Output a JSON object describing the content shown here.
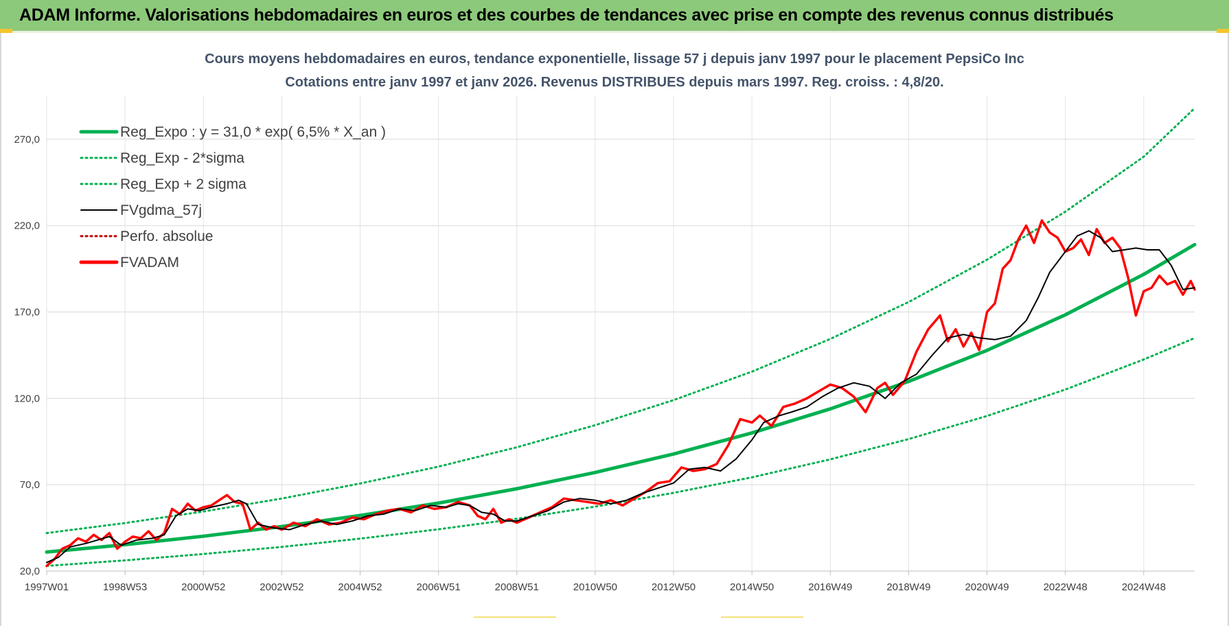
{
  "header": {
    "banner_title": "ADAM Informe. Valorisations hebdomadaires en euros et des courbes de tendances avec prise en compte des revenus connus distribués"
  },
  "colors": {
    "banner": "#8dc97a",
    "regression": "#00b050",
    "smooth": "#000000",
    "fvadam": "#ff0000",
    "perf": "#c00000"
  },
  "chart_data": {
    "type": "line",
    "title": "Cours moyens hebdomadaires en euros, tendance exponentielle, lissage 57 j depuis janv 1997 pour le placement PepsiCo Inc",
    "subtitle": "Cotations entre janv 1997 et janv 2026. Revenus DISTRIBUES depuis mars 1997.  Reg. croiss. : 4,8/20.",
    "xlabel": "",
    "ylabel": "",
    "ylim": [
      20,
      295
    ],
    "yticks": [
      20,
      70,
      120,
      170,
      220,
      270
    ],
    "ytick_labels": [
      "20,0",
      "70,0",
      "120,0",
      "170,0",
      "220,0",
      "270,0"
    ],
    "xlim": [
      1997.0,
      2026.3
    ],
    "xticks": [
      1997.0,
      1999.0,
      2001.0,
      2003.0,
      2005.0,
      2007.0,
      2009.0,
      2011.0,
      2013.0,
      2015.0,
      2017.0,
      2019.0,
      2021.0,
      2023.0,
      2025.0
    ],
    "xtick_labels": [
      "1997W01",
      "1998W53",
      "2000W52",
      "2002W52",
      "2004W52",
      "2006W51",
      "2008W51",
      "2010W50",
      "2012W50",
      "2014W50",
      "2016W49",
      "2018W49",
      "2020W49",
      "2022W48",
      "2024W48"
    ],
    "grid": true,
    "legend_position": "top-left",
    "legend": [
      {
        "label": "Reg_Expo : y = 31,0 * exp( 6,5% *  X_an )",
        "color": "#00b050",
        "style": "solid-thick"
      },
      {
        "label": "Reg_Exp - 2*sigma",
        "color": "#00b050",
        "style": "dotted"
      },
      {
        "label": "Reg_Exp + 2 sigma",
        "color": "#00b050",
        "style": "dotted"
      },
      {
        "label": "FVgdma_57j",
        "color": "#000000",
        "style": "solid"
      },
      {
        "label": "Perfo. absolue",
        "color": "#c00000",
        "style": "dotted"
      },
      {
        "label": "FVADAM",
        "color": "#ff0000",
        "style": "solid-thick"
      }
    ],
    "series": [
      {
        "name": "Reg_Expo : y = 31,0 * exp( 6,5% *  X_an )",
        "x": [
          1997.0,
          1999.0,
          2001.0,
          2003.0,
          2005.0,
          2007.0,
          2009.0,
          2011.0,
          2013.0,
          2015.0,
          2017.0,
          2019.0,
          2021.0,
          2023.0,
          2025.0,
          2026.3
        ],
        "values": [
          31.0,
          35.3,
          40.2,
          45.8,
          52.2,
          59.4,
          67.7,
          77.1,
          87.8,
          100.0,
          113.9,
          129.8,
          147.8,
          168.4,
          191.8,
          209.0
        ]
      },
      {
        "name": "Reg_Exp - 2*sigma",
        "x": [
          1997.0,
          1999.0,
          2001.0,
          2003.0,
          2005.0,
          2007.0,
          2009.0,
          2011.0,
          2013.0,
          2015.0,
          2017.0,
          2019.0,
          2021.0,
          2023.0,
          2025.0,
          2026.3
        ],
        "values": [
          23.0,
          26.2,
          29.9,
          34.0,
          38.8,
          44.2,
          50.3,
          57.3,
          65.3,
          74.3,
          84.7,
          96.4,
          109.8,
          125.1,
          142.5,
          154.9
        ]
      },
      {
        "name": "Reg_Exp + 2 sigma",
        "x": [
          1997.0,
          1999.0,
          2001.0,
          2003.0,
          2005.0,
          2007.0,
          2009.0,
          2011.0,
          2013.0,
          2015.0,
          2017.0,
          2019.0,
          2021.0,
          2023.0,
          2025.0,
          2026.3
        ],
        "values": [
          42.0,
          47.8,
          54.5,
          62.0,
          70.7,
          80.5,
          91.7,
          104.5,
          119.0,
          135.5,
          154.4,
          175.8,
          200.3,
          228.1,
          259.9,
          288.0
        ]
      },
      {
        "name": "FVgdma_57j",
        "x": [
          1997.0,
          1997.3,
          1997.6,
          1998.0,
          1998.3,
          1998.6,
          1998.9,
          1999.3,
          1999.7,
          2000.0,
          2000.3,
          2000.6,
          2000.9,
          2001.2,
          2001.6,
          2001.9,
          2002.1,
          2002.4,
          2002.8,
          2003.2,
          2003.6,
          2004.0,
          2004.4,
          2004.8,
          2005.2,
          2005.6,
          2006.0,
          2006.4,
          2006.8,
          2007.2,
          2007.5,
          2007.8,
          2008.1,
          2008.4,
          2008.7,
          2009.0,
          2009.4,
          2009.8,
          2010.2,
          2010.6,
          2011.0,
          2011.4,
          2011.8,
          2012.2,
          2012.6,
          2013.0,
          2013.4,
          2013.8,
          2014.2,
          2014.6,
          2015.0,
          2015.3,
          2015.7,
          2016.0,
          2016.4,
          2016.8,
          2017.2,
          2017.6,
          2018.0,
          2018.4,
          2018.8,
          2019.2,
          2019.6,
          2020.0,
          2020.4,
          2020.8,
          2021.2,
          2021.6,
          2022.0,
          2022.3,
          2022.6,
          2023.0,
          2023.3,
          2023.6,
          2023.9,
          2024.2,
          2024.5,
          2024.8,
          2025.1,
          2025.4,
          2025.7,
          2026.0,
          2026.3
        ],
        "values": [
          25,
          28,
          34,
          36,
          38,
          40,
          35,
          38,
          39,
          41,
          52,
          56,
          55,
          57,
          59,
          61,
          59,
          47,
          45,
          44,
          47,
          49,
          47,
          49,
          52,
          53,
          56,
          55,
          58,
          57,
          59,
          58,
          54,
          53,
          49,
          49,
          52,
          55,
          60,
          62,
          61,
          59,
          61,
          65,
          68,
          71,
          79,
          80,
          78,
          85,
          96,
          106,
          110,
          112,
          115,
          121,
          126,
          129,
          127,
          120,
          129,
          134,
          145,
          155,
          157,
          155,
          154,
          156,
          165,
          178,
          193,
          205,
          214,
          217,
          213,
          205,
          206,
          207,
          206,
          206,
          197,
          183,
          184
        ]
      },
      {
        "name": "FVADAM",
        "x": [
          1997.0,
          1997.2,
          1997.4,
          1997.6,
          1997.8,
          1998.0,
          1998.2,
          1998.4,
          1998.6,
          1998.8,
          1999.0,
          1999.2,
          1999.4,
          1999.6,
          1999.8,
          2000.0,
          2000.2,
          2000.4,
          2000.6,
          2000.8,
          2001.0,
          2001.2,
          2001.4,
          2001.6,
          2001.8,
          2002.0,
          2002.2,
          2002.4,
          2002.6,
          2002.8,
          2003.0,
          2003.3,
          2003.6,
          2003.9,
          2004.2,
          2004.5,
          2004.8,
          2005.1,
          2005.4,
          2005.7,
          2006.0,
          2006.3,
          2006.6,
          2006.9,
          2007.2,
          2007.5,
          2007.8,
          2008.0,
          2008.2,
          2008.4,
          2008.6,
          2008.8,
          2009.0,
          2009.3,
          2009.6,
          2009.9,
          2010.2,
          2010.5,
          2010.8,
          2011.1,
          2011.4,
          2011.7,
          2012.0,
          2012.3,
          2012.6,
          2012.9,
          2013.2,
          2013.5,
          2013.8,
          2014.1,
          2014.4,
          2014.7,
          2015.0,
          2015.2,
          2015.5,
          2015.8,
          2016.1,
          2016.4,
          2016.7,
          2017.0,
          2017.3,
          2017.6,
          2017.9,
          2018.2,
          2018.4,
          2018.6,
          2018.9,
          2019.2,
          2019.5,
          2019.8,
          2020.0,
          2020.2,
          2020.4,
          2020.6,
          2020.8,
          2021.0,
          2021.2,
          2021.4,
          2021.6,
          2021.8,
          2022.0,
          2022.2,
          2022.4,
          2022.6,
          2022.8,
          2023.0,
          2023.2,
          2023.4,
          2023.6,
          2023.8,
          2024.0,
          2024.2,
          2024.4,
          2024.6,
          2024.8,
          2025.0,
          2025.2,
          2025.4,
          2025.6,
          2025.8,
          2026.0,
          2026.2,
          2026.3
        ],
        "values": [
          23,
          27,
          33,
          35,
          39,
          37,
          41,
          38,
          42,
          33,
          37,
          40,
          39,
          43,
          38,
          42,
          56,
          53,
          59,
          55,
          57,
          58,
          61,
          64,
          60,
          59,
          44,
          48,
          44,
          46,
          44,
          48,
          46,
          50,
          47,
          48,
          51,
          50,
          53,
          55,
          56,
          54,
          58,
          56,
          57,
          60,
          58,
          52,
          50,
          56,
          48,
          50,
          48,
          51,
          54,
          57,
          62,
          61,
          60,
          59,
          61,
          58,
          62,
          66,
          71,
          72,
          80,
          78,
          79,
          82,
          93,
          108,
          106,
          110,
          104,
          115,
          117,
          120,
          124,
          128,
          126,
          121,
          112,
          126,
          129,
          122,
          130,
          147,
          160,
          168,
          153,
          160,
          150,
          158,
          148,
          170,
          175,
          195,
          200,
          212,
          220,
          210,
          223,
          216,
          213,
          205,
          207,
          212,
          203,
          218,
          210,
          213,
          207,
          190,
          168,
          182,
          184,
          191,
          186,
          188,
          180,
          188,
          183
        ]
      }
    ]
  }
}
